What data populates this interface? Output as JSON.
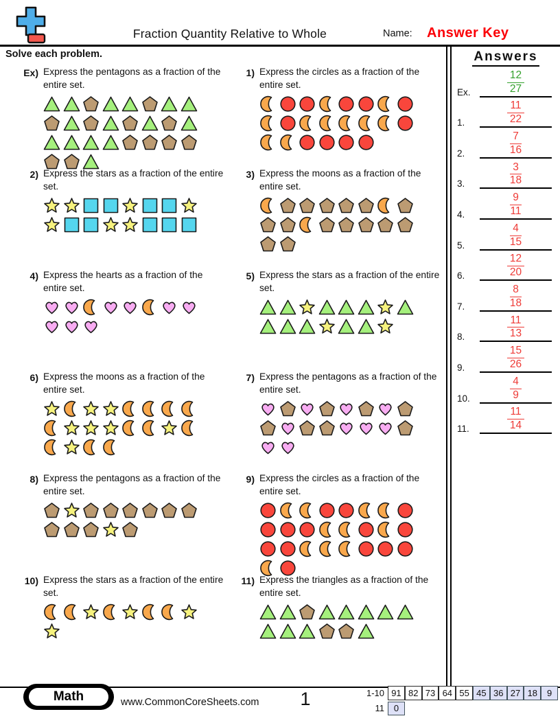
{
  "header": {
    "title": "Fraction Quantity Relative to Whole",
    "name_label": "Name:",
    "answer_key": "Answer Key",
    "answer_key_color": "#fb0007"
  },
  "instruction": "Solve each problem.",
  "answers_panel": {
    "title": "Answers",
    "entries": [
      {
        "label": "Ex.",
        "numerator": "12",
        "denominator": "27",
        "color": "#33a02c"
      },
      {
        "label": "1.",
        "numerator": "11",
        "denominator": "22",
        "color": "#ee3a36"
      },
      {
        "label": "2.",
        "numerator": "7",
        "denominator": "16",
        "color": "#ee3a36"
      },
      {
        "label": "3.",
        "numerator": "3",
        "denominator": "18",
        "color": "#ee3a36"
      },
      {
        "label": "4.",
        "numerator": "9",
        "denominator": "11",
        "color": "#ee3a36"
      },
      {
        "label": "5.",
        "numerator": "4",
        "denominator": "15",
        "color": "#ee3a36"
      },
      {
        "label": "6.",
        "numerator": "12",
        "denominator": "20",
        "color": "#ee3a36"
      },
      {
        "label": "7.",
        "numerator": "8",
        "denominator": "18",
        "color": "#ee3a36"
      },
      {
        "label": "8.",
        "numerator": "11",
        "denominator": "13",
        "color": "#ee3a36"
      },
      {
        "label": "9.",
        "numerator": "15",
        "denominator": "26",
        "color": "#ee3a36"
      },
      {
        "label": "10.",
        "numerator": "4",
        "denominator": "9",
        "color": "#ee3a36"
      },
      {
        "label": "11.",
        "numerator": "11",
        "denominator": "14",
        "color": "#ee3a36"
      }
    ]
  },
  "problems": [
    {
      "number": "Ex)",
      "question": "Express the pentagons as a fraction of the entire set.",
      "rows": [
        [
          "triangle",
          "triangle",
          "pentagon",
          "triangle",
          "triangle",
          "pentagon",
          "triangle",
          "triangle"
        ],
        [
          "pentagon",
          "triangle",
          "pentagon",
          "triangle",
          "pentagon",
          "triangle",
          "pentagon",
          "triangle"
        ],
        [
          "triangle",
          "triangle",
          "triangle",
          "triangle",
          "pentagon",
          "pentagon",
          "pentagon",
          "pentagon"
        ],
        [
          "pentagon",
          "pentagon",
          "triangle"
        ]
      ]
    },
    {
      "number": "1)",
      "question": "Express the circles as a fraction of the entire set.",
      "rows": [
        [
          "moon",
          "circle",
          "circle",
          "moon",
          "circle",
          "circle",
          "moon",
          "circle"
        ],
        [
          "moon",
          "circle",
          "moon",
          "moon",
          "moon",
          "moon",
          "moon",
          "circle"
        ],
        [
          "moon",
          "moon",
          "circle",
          "circle",
          "circle",
          "circle"
        ]
      ]
    },
    {
      "number": "2)",
      "question": "Express the stars as a fraction of the entire set.",
      "rows": [
        [
          "star",
          "star",
          "square",
          "square",
          "star",
          "square",
          "square",
          "star"
        ],
        [
          "star",
          "square",
          "square",
          "star",
          "star",
          "square",
          "square",
          "square"
        ]
      ]
    },
    {
      "number": "3)",
      "question": "Express the moons as a fraction of the entire set.",
      "rows": [
        [
          "moon",
          "pentagon",
          "pentagon",
          "pentagon",
          "pentagon",
          "pentagon",
          "moon",
          "pentagon"
        ],
        [
          "pentagon",
          "pentagon",
          "moon",
          "pentagon",
          "pentagon",
          "pentagon",
          "pentagon",
          "pentagon"
        ],
        [
          "pentagon",
          "pentagon"
        ]
      ]
    },
    {
      "number": "4)",
      "question": "Express the hearts as a fraction of the entire set.",
      "rows": [
        [
          "heart",
          "heart",
          "moon",
          "heart",
          "heart",
          "moon",
          "heart",
          "heart"
        ],
        [
          "heart",
          "heart",
          "heart"
        ]
      ]
    },
    {
      "number": "5)",
      "question": "Express the stars as a fraction of the entire set.",
      "rows": [
        [
          "triangle",
          "triangle",
          "star",
          "triangle",
          "triangle",
          "triangle",
          "star",
          "triangle"
        ],
        [
          "triangle",
          "triangle",
          "triangle",
          "star",
          "triangle",
          "triangle",
          "star"
        ]
      ]
    },
    {
      "number": "6)",
      "question": "Express the moons as a fraction of the entire set.",
      "rows": [
        [
          "star",
          "moon",
          "star",
          "star",
          "moon",
          "moon",
          "moon",
          "moon"
        ],
        [
          "moon",
          "star",
          "star",
          "star",
          "moon",
          "moon",
          "star",
          "moon"
        ],
        [
          "moon",
          "star",
          "moon",
          "moon"
        ]
      ]
    },
    {
      "number": "7)",
      "question": "Express the pentagons as a fraction of the entire set.",
      "rows": [
        [
          "heart",
          "pentagon",
          "heart",
          "pentagon",
          "heart",
          "pentagon",
          "heart",
          "pentagon"
        ],
        [
          "pentagon",
          "heart",
          "pentagon",
          "pentagon",
          "heart",
          "heart",
          "heart",
          "pentagon"
        ],
        [
          "heart",
          "heart"
        ]
      ]
    },
    {
      "number": "8)",
      "question": "Express the pentagons as a fraction of the entire set.",
      "rows": [
        [
          "pentagon",
          "star",
          "pentagon",
          "pentagon",
          "pentagon",
          "pentagon",
          "pentagon",
          "pentagon"
        ],
        [
          "pentagon",
          "pentagon",
          "pentagon",
          "star",
          "pentagon"
        ]
      ]
    },
    {
      "number": "9)",
      "question": "Express the circles as a fraction of the entire set.",
      "rows": [
        [
          "circle",
          "moon",
          "moon",
          "circle",
          "circle",
          "moon",
          "moon",
          "circle"
        ],
        [
          "circle",
          "circle",
          "circle",
          "moon",
          "moon",
          "circle",
          "moon",
          "circle"
        ],
        [
          "circle",
          "circle",
          "moon",
          "moon",
          "moon",
          "circle",
          "circle",
          "circle"
        ],
        [
          "moon",
          "circle"
        ]
      ]
    },
    {
      "number": "10)",
      "question": "Express the stars as a fraction of the entire set.",
      "rows": [
        [
          "moon",
          "moon",
          "star",
          "moon",
          "star",
          "moon",
          "moon",
          "star"
        ],
        [
          "star"
        ]
      ]
    },
    {
      "number": "11)",
      "question": "Express the triangles as a fraction of the entire set.",
      "rows": [
        [
          "triangle",
          "triangle",
          "pentagon",
          "triangle",
          "triangle",
          "triangle",
          "triangle",
          "triangle"
        ],
        [
          "triangle",
          "triangle",
          "triangle",
          "pentagon",
          "pentagon",
          "triangle"
        ]
      ]
    }
  ],
  "shape_colors": {
    "triangle": "#a5f07d",
    "pentagon": "#bc9b72",
    "circle": "#f9463c",
    "moon": "#f9a84c",
    "star": "#f6f27e",
    "square": "#55d6ee",
    "heart": "#f8acf2"
  },
  "shape_outline": "#1a1a1a",
  "footer": {
    "subject": "Math",
    "website": "www.CommonCoreSheets.com",
    "page_number": "1",
    "score_rows": [
      {
        "label": "1-10",
        "cells": [
          {
            "value": "91",
            "shaded": false
          },
          {
            "value": "82",
            "shaded": false
          },
          {
            "value": "73",
            "shaded": false
          },
          {
            "value": "64",
            "shaded": false
          },
          {
            "value": "55",
            "shaded": false
          },
          {
            "value": "45",
            "shaded": true
          },
          {
            "value": "36",
            "shaded": true
          },
          {
            "value": "27",
            "shaded": true
          },
          {
            "value": "18",
            "shaded": true
          },
          {
            "value": "9",
            "shaded": true
          }
        ]
      },
      {
        "label": "11",
        "cells": [
          {
            "value": "0",
            "shaded": true
          }
        ]
      }
    ]
  }
}
